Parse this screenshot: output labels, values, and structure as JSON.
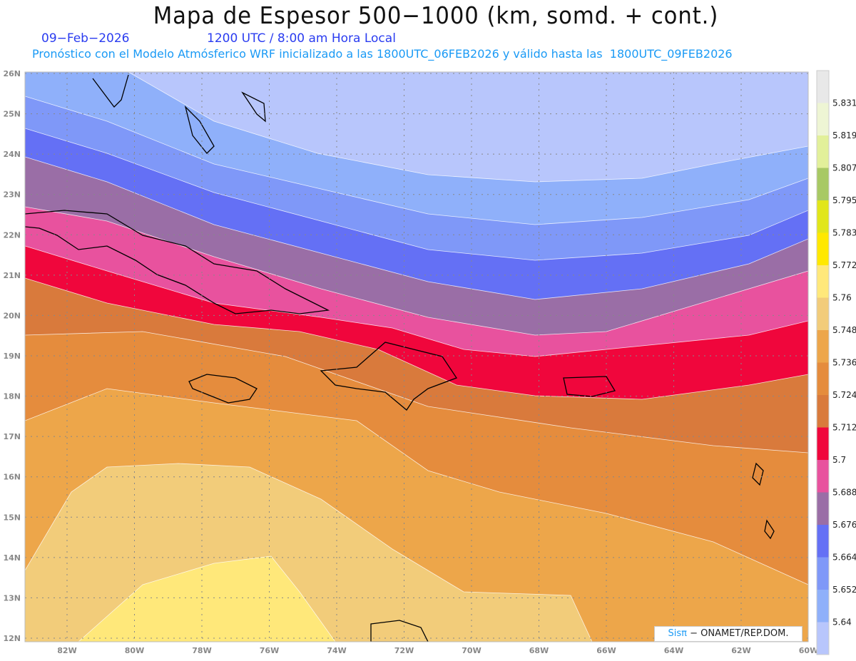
{
  "header": {
    "title": "Mapa de Espesor 500−1000 (km, somd. + cont.)",
    "date": "09−Feb−2026",
    "time": "1200 UTC / 8:00 am Hora Local",
    "forecast": "Pronóstico con el Modelo Atmósferico WRF inicializado a las 1800UTC_06FEB2026 y válido hasta las  1800UTC_09FEB2026"
  },
  "axes": {
    "longitudes": [
      "82W",
      "80W",
      "78W",
      "76W",
      "74W",
      "72W",
      "70W",
      "68W",
      "66W",
      "64W",
      "62W",
      "60W"
    ],
    "latitudes": [
      "26N",
      "25N",
      "24N",
      "23N",
      "22N",
      "21N",
      "20N",
      "19N",
      "18N",
      "17N",
      "16N",
      "15N",
      "14N",
      "13N",
      "12N"
    ]
  },
  "colorbar": {
    "colors": [
      "#e8e8e8",
      "#eef5d4",
      "#e2f09a",
      "#a8c964",
      "#e1e61a",
      "#ffe800",
      "#ffe87a",
      "#f2cc7a",
      "#eda64a",
      "#e58c3d",
      "#d97a3c",
      "#f0063c",
      "#e8529e",
      "#9a6ea6",
      "#6470f5",
      "#7f98f8",
      "#8fb0fa",
      "#b8c6fc"
    ],
    "labels": [
      "5.831",
      "5.819",
      "5.807",
      "5.795",
      "5.783",
      "5.772",
      "5.76",
      "5.748",
      "5.736",
      "5.724",
      "5.712",
      "5.7",
      "5.688",
      "5.676",
      "5.664",
      "5.652",
      "5.64"
    ]
  },
  "logo": {
    "brand": "Sisπ",
    "text": "− ONAMET/REP.DOM."
  }
}
